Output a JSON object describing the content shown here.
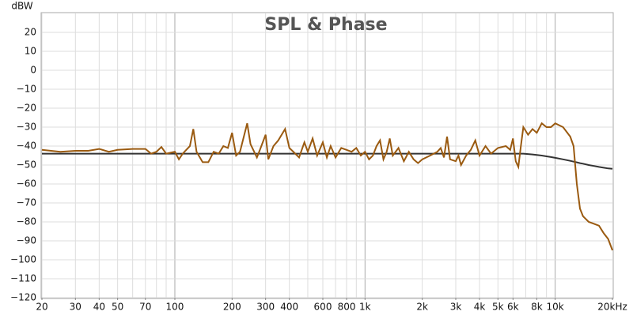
{
  "chart_data": {
    "type": "line",
    "title": "SPL & Phase",
    "y_unit": "dBW",
    "xscale": "log",
    "grid": true,
    "xlim": [
      20,
      20000
    ],
    "ylim": [
      -120,
      30
    ],
    "xticks": [
      20,
      30,
      40,
      50,
      70,
      100,
      200,
      300,
      400,
      600,
      800,
      {
        "value": 1000,
        "label": "1k"
      },
      {
        "value": 2000,
        "label": "2k"
      },
      {
        "value": 3000,
        "label": "3k"
      },
      {
        "value": 4000,
        "label": "4k"
      },
      {
        "value": 5000,
        "label": "5k"
      },
      {
        "value": 6000,
        "label": "6k"
      },
      {
        "value": 8000,
        "label": "8k"
      },
      {
        "value": 10000,
        "label": "10k"
      },
      {
        "value": 20000,
        "label": "20kHz"
      }
    ],
    "xgrid": [
      20,
      30,
      40,
      50,
      60,
      70,
      80,
      90,
      200,
      300,
      400,
      500,
      600,
      700,
      800,
      900,
      2000,
      3000,
      4000,
      5000,
      6000,
      7000,
      8000,
      9000
    ],
    "xgrid_major": [
      100,
      1000,
      10000
    ],
    "yticks": [
      {
        "value": 20,
        "label": "20"
      },
      {
        "value": 10,
        "label": "10"
      },
      {
        "value": 0,
        "label": "0"
      },
      {
        "value": -10,
        "label": "−10"
      },
      {
        "value": -20,
        "label": "−20"
      },
      {
        "value": -30,
        "label": "−30"
      },
      {
        "value": -40,
        "label": "−40"
      },
      {
        "value": -50,
        "label": "−50"
      },
      {
        "value": -60,
        "label": "−60"
      },
      {
        "value": -70,
        "label": "−70"
      },
      {
        "value": -80,
        "label": "−80"
      },
      {
        "value": -90,
        "label": "−90"
      },
      {
        "value": -100,
        "label": "−100"
      },
      {
        "value": -110,
        "label": "−110"
      },
      {
        "value": -120,
        "label": "−120"
      }
    ],
    "x": [
      20,
      25,
      30,
      35,
      40,
      45,
      50,
      60,
      70,
      75,
      80,
      85,
      90,
      95,
      100,
      105,
      110,
      120,
      125,
      130,
      140,
      150,
      160,
      170,
      180,
      190,
      200,
      210,
      220,
      240,
      250,
      270,
      280,
      300,
      310,
      330,
      350,
      380,
      400,
      430,
      450,
      480,
      500,
      530,
      560,
      600,
      630,
      660,
      700,
      750,
      800,
      850,
      900,
      950,
      1000,
      1050,
      1100,
      1150,
      1200,
      1250,
      1300,
      1350,
      1400,
      1500,
      1600,
      1700,
      1800,
      1900,
      2000,
      2200,
      2400,
      2500,
      2600,
      2700,
      2800,
      3000,
      3100,
      3200,
      3400,
      3600,
      3800,
      4000,
      4300,
      4600,
      5000,
      5500,
      5800,
      6000,
      6200,
      6400,
      6600,
      6800,
      7200,
      7600,
      8000,
      8500,
      9000,
      9500,
      10000,
      11000,
      12000,
      12500,
      13000,
      13500,
      14000,
      15000,
      16000,
      17000,
      18000,
      19000,
      20000
    ],
    "series": [
      {
        "color": "#333333",
        "values": [
          -44,
          -44,
          -44,
          -44,
          -44,
          -44,
          -44,
          -44,
          -44,
          -44,
          -44,
          -44,
          -44,
          -44,
          -44,
          -44,
          -44,
          -44,
          -44,
          -44,
          -44,
          -44,
          -44,
          -44,
          -44,
          -44,
          -44,
          -44,
          -44,
          -44,
          -44,
          -44,
          -44,
          -44,
          -44,
          -44,
          -44,
          -44,
          -44,
          -44,
          -44,
          -44,
          -44,
          -44,
          -44,
          -44,
          -44,
          -44,
          -44,
          -44,
          -44,
          -44,
          -44,
          -44,
          -44,
          -44,
          -44,
          -44,
          -44,
          -44,
          -44,
          -44,
          -44,
          -44,
          -44,
          -44,
          -44,
          -44,
          -44,
          -44,
          -44,
          -44,
          -44,
          -44,
          -44,
          -44,
          -44,
          -44,
          -44,
          -44,
          -44,
          -44,
          -44,
          -44,
          -44,
          -44,
          -44,
          -44,
          -44,
          -44,
          -44,
          -44,
          -44.2,
          -44.4,
          -44.7,
          -45,
          -45.4,
          -45.8,
          -46.2,
          -47,
          -47.8,
          -48.2,
          -48.6,
          -49,
          -49.3,
          -50,
          -50.5,
          -51,
          -51.4,
          -51.8,
          -52
        ]
      },
      {
        "color": "#9a5a10",
        "values": [
          -42,
          -43,
          -42.5,
          -42.5,
          -41.5,
          -43,
          -42,
          -41.5,
          -41.5,
          -44,
          -43,
          -40.5,
          -44,
          -43.5,
          -43,
          -47,
          -44,
          -40,
          -31,
          -43,
          -48.5,
          -48.5,
          -43,
          -44,
          -40,
          -41,
          -33,
          -45,
          -43,
          -28,
          -39,
          -46,
          -42,
          -34,
          -47,
          -40,
          -37,
          -31,
          -41,
          -44,
          -46,
          -38,
          -43,
          -36,
          -45,
          -38,
          -46,
          -40,
          -46,
          -41,
          -42,
          -43,
          -41,
          -45,
          -43,
          -47,
          -45,
          -40,
          -37,
          -47,
          -43,
          -36,
          -45,
          -41,
          -48,
          -43,
          -47,
          -49,
          -47,
          -45,
          -43,
          -41,
          -46,
          -35,
          -47,
          -48,
          -45,
          -50,
          -45,
          -42,
          -37,
          -45,
          -40,
          -44,
          -41,
          -40,
          -42,
          -36,
          -48,
          -51,
          -40,
          -30,
          -34,
          -31,
          -33,
          -28,
          -30,
          -30,
          -28,
          -30,
          -35,
          -40,
          -60,
          -73,
          -77,
          -80,
          -81,
          -82,
          -86,
          -89,
          -95
        ]
      }
    ]
  }
}
